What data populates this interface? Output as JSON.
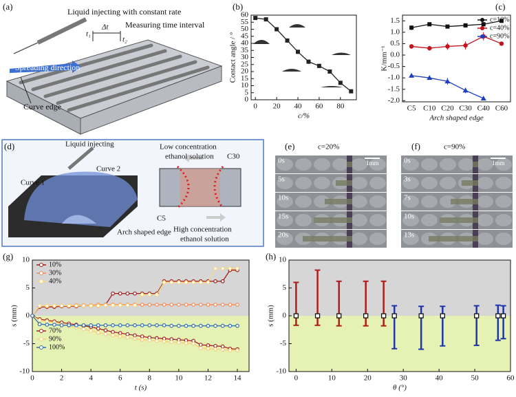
{
  "chart_data": [
    {
      "type": "line",
      "panel_label": "(b)",
      "x": [
        0,
        10,
        20,
        30,
        40,
        50,
        60,
        70,
        80,
        90
      ],
      "series": [
        {
          "color": "#222222",
          "marker": "square",
          "values": [
            58,
            57,
            50,
            42,
            34,
            27,
            24,
            20,
            12,
            6
          ],
          "errors": [
            1,
            1,
            1.5,
            1.5,
            1.5,
            1.5,
            1.5,
            1.5,
            1.5,
            0.5
          ]
        }
      ],
      "xlim": [
        -4,
        95
      ],
      "xticks": [
        0,
        20,
        40,
        60,
        80
      ],
      "ylim": [
        0,
        60
      ],
      "yticks": [
        0,
        5,
        10,
        15,
        20,
        25,
        30,
        35,
        40,
        45,
        50,
        55,
        60
      ],
      "xlabel": "c/%",
      "ylabel": "Contact angle / °"
    },
    {
      "type": "line",
      "panel_label": "(c)",
      "categories": [
        "C5",
        "C10",
        "C20",
        "C30",
        "C40",
        "C60"
      ],
      "series": [
        {
          "name": "c=10%",
          "color": "#111111",
          "marker": "square",
          "values": [
            1.2,
            1.35,
            1.25,
            1.3,
            1.35,
            1.5
          ],
          "errors": [
            0.1,
            0.05,
            0.08,
            0.08,
            0.1,
            0.05
          ]
        },
        {
          "name": "c=40%",
          "color": "#c0141c",
          "marker": "circle",
          "values": [
            0.38,
            0.3,
            0.38,
            0.42,
            0.82,
            0.5
          ],
          "errors": [
            0.1,
            0.1,
            0.15,
            0.18,
            0.18,
            0.07
          ]
        },
        {
          "name": "c=90%",
          "color": "#1f3fbf",
          "marker": "triangle",
          "values": [
            -0.9,
            -1.0,
            -1.15,
            -1.55,
            -1.9,
            null
          ],
          "errors": [
            0.08,
            0.05,
            0.15,
            0.12,
            0.05,
            null
          ]
        }
      ],
      "ylim": [
        -2.05,
        1.75
      ],
      "yticks": [
        {
          "value": -2,
          "label": "-2.0"
        },
        -1.5,
        {
          "value": -1,
          "label": "-1.0"
        },
        -0.5,
        {
          "value": 0,
          "label": "0.0"
        },
        0.5,
        {
          "value": 1,
          "label": "1.0"
        },
        1.5
      ],
      "xlabel": "Arch shaped edge",
      "ylabel": "K/mm⁻¹",
      "legend": "right"
    },
    {
      "type": "line",
      "panel_label": "(g)",
      "x": [
        0,
        0.5,
        1,
        1.5,
        2,
        2.5,
        3,
        3.5,
        4,
        4.5,
        5,
        5.5,
        6,
        6.5,
        7,
        7.5,
        8,
        8.5,
        9,
        9.5,
        10,
        10.5,
        11,
        11.5,
        12,
        12.5,
        13,
        13.5,
        14
      ],
      "series": [
        {
          "name": "10%",
          "color": "#9e1b1b",
          "values": [
            0,
            1.6,
            1.6,
            1.6,
            1.7,
            1.7,
            1.7,
            1.8,
            1.8,
            1.8,
            2.0,
            4.0,
            4.0,
            4.0,
            4.0,
            4.0,
            4.0,
            4.0,
            6.2,
            6.2,
            6.2,
            6.2,
            6.2,
            6.2,
            6.2,
            6.2,
            6.2,
            8.2,
            8.2
          ]
        },
        {
          "name": "30%",
          "color": "#f08c5a",
          "values": [
            0,
            1.7,
            1.7,
            1.8,
            1.8,
            1.8,
            1.9,
            1.9,
            1.9,
            2.0,
            2.0,
            2.0,
            2.0,
            2.0,
            2.0,
            2.0,
            2.0,
            2.0,
            2.0,
            2.0,
            2.0,
            2.0,
            2.0,
            2.0,
            2.0,
            2.0,
            2.0,
            2.0,
            2.0
          ]
        },
        {
          "name": "40%",
          "color": "#f9d77e",
          "values": [
            0,
            1.8,
            1.8,
            1.8,
            1.8,
            1.8,
            1.8,
            1.8,
            1.8,
            1.8,
            1.9,
            1.9,
            1.9,
            1.9,
            1.9,
            3.8,
            3.8,
            3.8,
            6.0,
            6.0,
            6.0,
            6.0,
            6.0,
            6.0,
            6.0,
            8.5,
            8.5,
            8.5,
            8.5
          ]
        },
        {
          "name": "70%",
          "color": "#a3241f",
          "values": [
            0,
            -0.6,
            -0.8,
            -1.0,
            -1.2,
            -1.4,
            -1.6,
            -1.8,
            -2.0,
            -2.3,
            -2.6,
            -2.9,
            -3.1,
            -3.3,
            -3.5,
            -3.7,
            -3.9,
            -4.0,
            -4.1,
            -4.2,
            -4.3,
            -4.4,
            -4.5,
            -5.2,
            -5.3,
            -5.4,
            -5.5,
            -5.9,
            -6.0
          ]
        },
        {
          "name": "90%",
          "color": "#f6cf7a",
          "values": [
            0,
            -0.8,
            -1.0,
            -1.2,
            -1.5,
            -1.8,
            -2.1,
            -2.4,
            -2.7,
            -3.0,
            -3.3,
            -3.5,
            -3.7,
            -3.9,
            -4.1,
            -4.3,
            -4.4,
            -4.5,
            -4.6,
            -4.7,
            -4.8,
            -4.9,
            -5.0,
            -5.8,
            -5.9,
            -6.0,
            -6.1,
            -6.2,
            -6.2
          ]
        },
        {
          "name": "100%",
          "color": "#2f6fad",
          "values": [
            0,
            -1.5,
            -1.6,
            -1.6,
            -1.7,
            -1.7,
            -1.7,
            -1.7,
            -1.7,
            -1.7,
            -1.7,
            -1.7,
            -1.7,
            -1.7,
            -1.7,
            -1.7,
            -1.7,
            -1.7,
            -1.7,
            -1.8,
            -1.8,
            -1.8,
            -1.8,
            -1.8,
            -1.8,
            -1.8,
            -1.8,
            -1.8,
            -1.8
          ]
        }
      ],
      "xlim": [
        0,
        14.8
      ],
      "xticks": [
        0,
        2,
        4,
        6,
        8,
        10,
        12,
        14
      ],
      "ylim": [
        -10,
        10
      ],
      "yticks": [
        -10,
        -5,
        0,
        5,
        10
      ],
      "xlabel": "t (s)",
      "ylabel": "s (mm)",
      "background": {
        "positive": "#d6d6d6",
        "negative": "#e6f1b4"
      },
      "marker": "open-circle"
    },
    {
      "type": "errorbar",
      "panel_label": "(h)",
      "series": [
        {
          "color": "#b01c1c",
          "x": [
            0,
            6,
            12,
            19.5,
            24.5
          ],
          "values": [
            0,
            0,
            0,
            0,
            0
          ],
          "high": [
            6,
            8.2,
            6.2,
            6.2,
            6.2
          ],
          "low": [
            -1.7,
            -1.7,
            -1.8,
            -1.8,
            -1.8
          ]
        },
        {
          "color": "#1f35a8",
          "x": [
            27.5,
            35,
            41,
            50.5,
            56.5,
            58
          ],
          "values": [
            0,
            0,
            0,
            0,
            0,
            0
          ],
          "high": [
            1.8,
            1.7,
            1.7,
            1.8,
            1.9,
            1.8
          ],
          "low": [
            -5.9,
            -6,
            -5.4,
            -5.3,
            -4.4,
            -4.1
          ]
        }
      ],
      "xlim": [
        -2,
        60
      ],
      "xticks": [
        0,
        10,
        20,
        30,
        40,
        50,
        60
      ],
      "ylim": [
        -10,
        10
      ],
      "yticks": [
        -10,
        -5,
        0,
        5,
        10
      ],
      "xlabel": "θ (°)",
      "ylabel": "s (mm)",
      "background": {
        "positive": "#d6d6d6",
        "negative": "#e6f1b4"
      }
    }
  ],
  "panel_a": {
    "label": "(a)",
    "injecting": "Liquid injecting with constant rate",
    "measuring": "Measuring time interval",
    "t1": "t₁",
    "dt": "Δt",
    "t2": "t₂",
    "spreading": "Spreading direction",
    "curve_edge": "Curve edge"
  },
  "panel_d": {
    "label": "(d)",
    "injecting": "Liquid injecting",
    "curve1": "Curve 1",
    "curve2": "Curve 2",
    "arch": "Arch shaped edge",
    "low": [
      "Low concentration",
      "ethanol solution"
    ],
    "c30": "C30",
    "c5": "C5",
    "high": [
      "High concentration",
      "ethanol solution"
    ]
  },
  "panel_e": {
    "label": "(e)",
    "title": "c=20%",
    "scale": "1mm",
    "times": [
      "0s",
      "5s",
      "10s",
      "15s",
      "20s"
    ]
  },
  "panel_f": {
    "label": "(f)",
    "title": "c=90%",
    "scale": "1mm",
    "times": [
      "0s",
      "3s",
      "7s",
      "10s",
      "13s"
    ]
  }
}
